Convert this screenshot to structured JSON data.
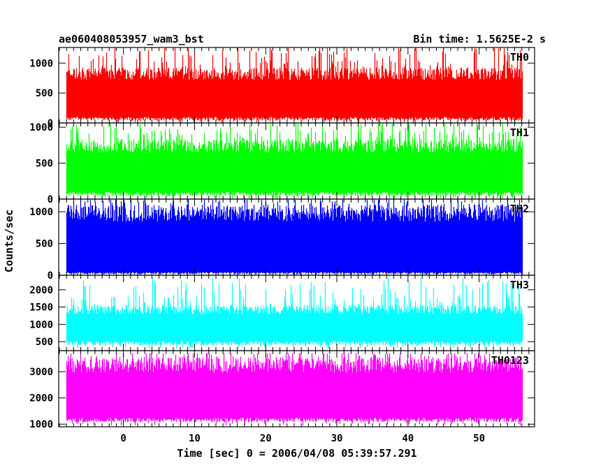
{
  "chart_data": {
    "type": "line",
    "title_left": "ae060408053957_wam3_bst",
    "title_right": "Bin time: 1.5625E-2 s",
    "ylabel": "Counts/sec",
    "xlabel": "Time [sec] 0 = 2006/04/08 05:39:57.291",
    "xlim": [
      -9.1,
      57.8
    ],
    "x_range_of_data": [
      -8,
      56
    ],
    "xticks": [
      0,
      10,
      20,
      30,
      40,
      50
    ],
    "xtick_labels": [
      "0",
      "10",
      "20",
      "30",
      "40",
      "50"
    ],
    "panels": [
      {
        "name": "TH0",
        "color": "#ff0000",
        "ylim": [
          0,
          1260
        ],
        "yticks": [
          0,
          500,
          1000
        ],
        "ytick_labels": [
          "0",
          "500",
          "1000"
        ],
        "typical_low": 100,
        "typical_high": 800,
        "peak": 1260,
        "floor": 0
      },
      {
        "name": "TH1",
        "color": "#00ff00",
        "ylim": [
          0,
          1060
        ],
        "yticks": [
          0,
          500,
          1000
        ],
        "ytick_labels": [
          "0",
          "500",
          "1000"
        ],
        "typical_low": 100,
        "typical_high": 720,
        "peak": 1060,
        "floor": 0
      },
      {
        "name": "TH2",
        "color": "#0000ff",
        "ylim": [
          0,
          1200
        ],
        "yticks": [
          0,
          500,
          1000
        ],
        "ytick_labels": [
          "0",
          "500",
          "1000"
        ],
        "typical_low": 50,
        "typical_high": 950,
        "peak": 1200,
        "floor": 0
      },
      {
        "name": "TH3",
        "color": "#00ffff",
        "ylim": [
          240,
          2420
        ],
        "yticks": [
          500,
          1000,
          1500,
          2000
        ],
        "ytick_labels": [
          "500",
          "1000",
          "1500",
          "2000"
        ],
        "typical_low": 520,
        "typical_high": 1400,
        "peak": 2340,
        "floor": 300
      },
      {
        "name": "TH0123",
        "color": "#ff00ff",
        "ylim": [
          900,
          3800
        ],
        "yticks": [
          1000,
          2000,
          3000
        ],
        "ytick_labels": [
          "1000",
          "2000",
          "3000"
        ],
        "typical_low": 1250,
        "typical_high": 3200,
        "peak": 3700,
        "floor": 950
      }
    ]
  }
}
